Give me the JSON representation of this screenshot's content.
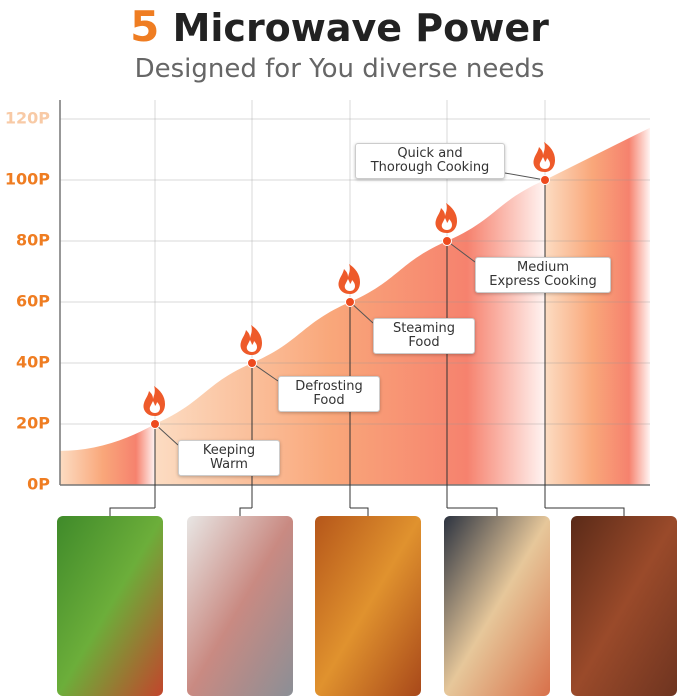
{
  "chart_data": {
    "type": "area",
    "title_number": "5",
    "title": "Microwave Power",
    "subtitle": "Designed for You diverse needs",
    "categories": [
      "Keeping\nWarm",
      "Defrosting\nFood",
      "Steaming\nFood",
      "Medium\nExpress Cooking",
      "Quick and\nThorough Cooking"
    ],
    "values": [
      20,
      40,
      60,
      80,
      100
    ],
    "color": "#f5523a",
    "ylim": [
      0,
      120
    ],
    "yticks": [
      {
        "value": 0,
        "label": "0P"
      },
      {
        "value": 20,
        "label": "20P"
      },
      {
        "value": 40,
        "label": "40P"
      },
      {
        "value": 60,
        "label": "60P"
      },
      {
        "value": 80,
        "label": "80P"
      },
      {
        "value": 100,
        "label": "100P"
      },
      {
        "value": 120,
        "label": "120P"
      }
    ],
    "grid": true
  }
}
